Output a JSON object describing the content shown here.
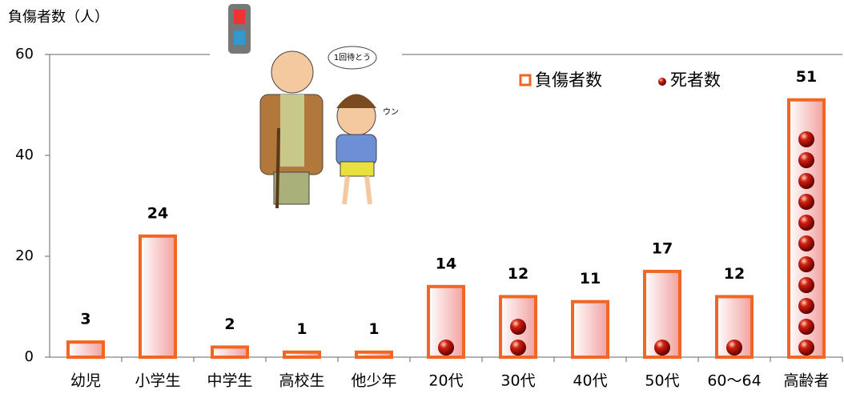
{
  "chart_data": {
    "type": "bar",
    "y_label": "負傷者数（人）",
    "categories": [
      "幼児",
      "小学生",
      "中学生",
      "高校生",
      "他少年",
      "20代",
      "30代",
      "40代",
      "50代",
      "60～64",
      "高齢者"
    ],
    "series": [
      {
        "name": "負傷者数",
        "color": "#f26522",
        "values": [
          3,
          24,
          2,
          1,
          1,
          14,
          12,
          11,
          17,
          12,
          51
        ]
      },
      {
        "name": "死者数",
        "color": "#b01010",
        "values": [
          0,
          0,
          0,
          0,
          0,
          1,
          2,
          0,
          1,
          1,
          11
        ]
      }
    ],
    "ylim": [
      0,
      60
    ],
    "yticks": [
      0,
      20,
      40,
      60
    ],
    "illustration_texts": [
      "1回待とう",
      "ウン"
    ]
  }
}
